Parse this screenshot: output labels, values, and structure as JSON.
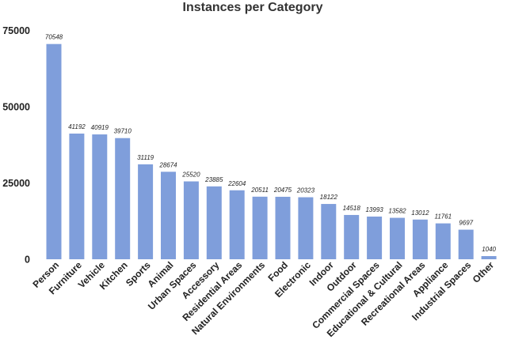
{
  "chart_data": {
    "type": "bar",
    "title": "Instances per Category",
    "xlabel": "",
    "ylabel": "",
    "ylim": [
      0,
      75000
    ],
    "yticks": [
      0,
      25000,
      50000,
      75000
    ],
    "yticklabels": [
      "0",
      "25000",
      "50000",
      "75000"
    ],
    "grid": false,
    "bar_color": "#7f9edb",
    "categories": [
      "Person",
      "Furniture",
      "Vehicle",
      "Kitchen",
      "Sports",
      "Animal",
      "Urban Spaces",
      "Accessory",
      "Residential Areas",
      "Natural Environments",
      "Food",
      "Electronic",
      "Indoor",
      "Outdoor",
      "Commercial Spaces",
      "Educational & Cultural",
      "Recreational Areas",
      "Appliance",
      "Industrial Spaces",
      "Other"
    ],
    "values": [
      70548,
      41192,
      40919,
      39710,
      31119,
      28674,
      25520,
      23885,
      22604,
      20511,
      20475,
      20323,
      18122,
      14518,
      13993,
      13582,
      13012,
      11761,
      9697,
      1040
    ]
  }
}
